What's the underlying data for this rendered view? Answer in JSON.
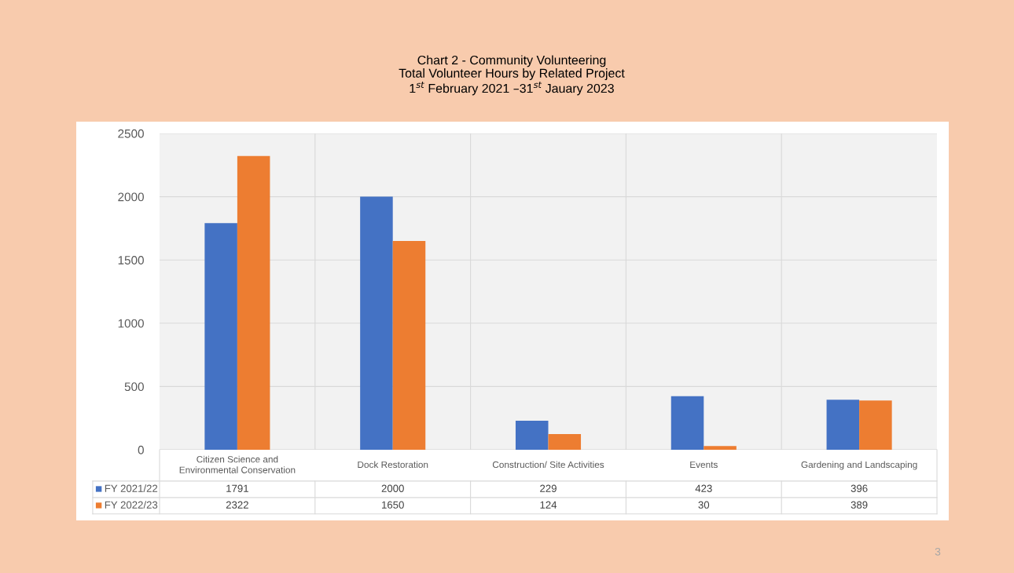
{
  "chart_data": {
    "type": "bar",
    "title": "Chart 2 - Community Volunteering\nTotal Volunteer Hours by Related Project\n1$^{st}$ February 2021 –31$^{st}$ Jauary 2023",
    "categories": [
      "Citizen Science and Environmental Conservation",
      "Dock Restoration",
      "Construction/ Site Activities",
      "Events",
      "Gardening and Landscaping"
    ],
    "series": [
      {
        "name": "FY 2021/22",
        "color": "#4472c4",
        "values": [
          1791,
          2000,
          229,
          423,
          396
        ]
      },
      {
        "name": "FY 2022/23",
        "color": "#ed7d31",
        "values": [
          2322,
          1650,
          124,
          30,
          389
        ]
      }
    ],
    "ylim": [
      0,
      2500
    ],
    "yticks": [
      0,
      500,
      1000,
      1500,
      2000,
      2500
    ],
    "grid": true,
    "legend": "bottom",
    "data_labels": true,
    "annotations": [
      "3"
    ]
  }
}
